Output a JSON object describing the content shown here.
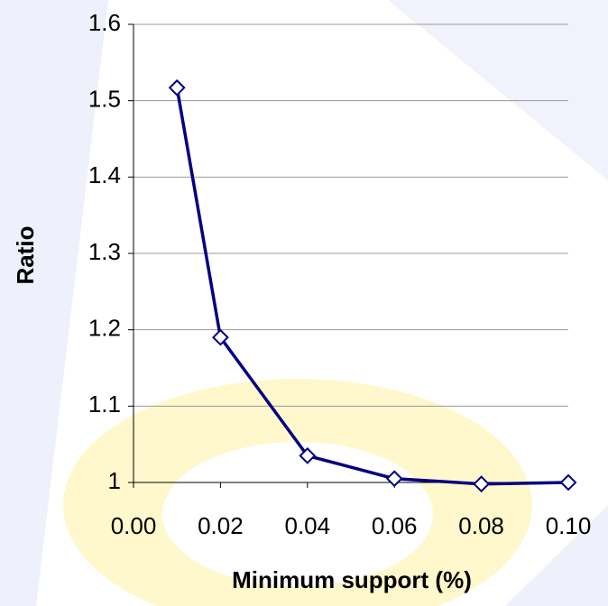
{
  "chart_data": {
    "type": "line",
    "x_label": "Minimum support (%)",
    "y_label": "Ratio",
    "x": [
      0.01,
      0.02,
      0.04,
      0.06,
      0.08,
      0.1
    ],
    "series": [
      {
        "name": "Ratio",
        "color": "#000080",
        "values": [
          1.517,
          1.19,
          1.035,
          1.005,
          0.998,
          1.0
        ]
      }
    ],
    "xlim": [
      0,
      0.1
    ],
    "xticks": [
      {
        "value": 0,
        "label": "0.00"
      },
      {
        "value": 0.02,
        "label": "0.02"
      },
      {
        "value": 0.04,
        "label": "0.04"
      },
      {
        "value": 0.06,
        "label": "0.06"
      },
      {
        "value": 0.08,
        "label": "0.08"
      },
      {
        "value": 0.1,
        "label": "0.10"
      }
    ],
    "ylim": [
      1,
      1.6
    ],
    "yticks": [
      1,
      1.1,
      1.2,
      1.3,
      1.4,
      1.5,
      1.6
    ],
    "grid": true
  }
}
